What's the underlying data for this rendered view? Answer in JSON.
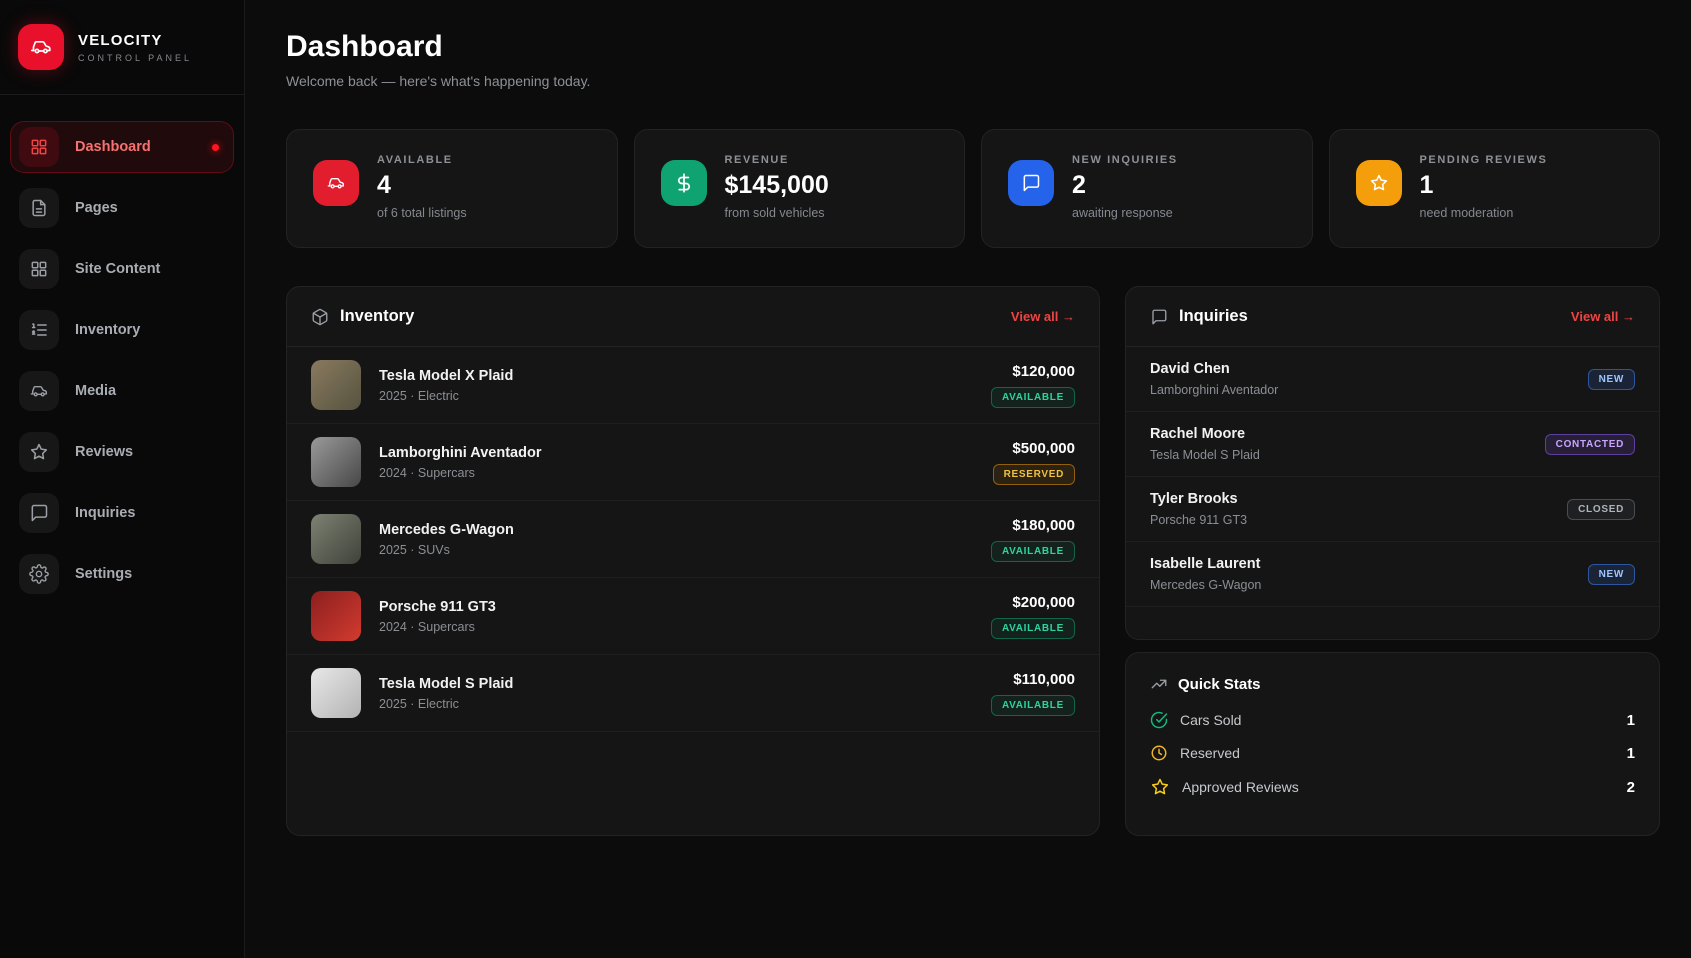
{
  "colors": {
    "accent_red": "#e8102a",
    "link_red": "#ef4444",
    "stat_red": "#e11d2e",
    "stat_green": "#0ea371",
    "stat_blue": "#2563eb",
    "stat_orange": "#f59e0b",
    "badge_available": "#2dd4a0",
    "badge_reserved": "#f0c23e",
    "badge_new": "#9ec5ff",
    "badge_contacted": "#c9a4ff",
    "badge_closed": "#aeb4bc"
  },
  "brand": {
    "name": "VELOCITY",
    "subtitle": "CONTROL PANEL"
  },
  "sidebar": {
    "items": [
      {
        "label": "Dashboard",
        "icon": "grid",
        "active": true
      },
      {
        "label": "Pages",
        "icon": "file",
        "active": false
      },
      {
        "label": "Site Content",
        "icon": "grid",
        "active": false
      },
      {
        "label": "Inventory",
        "icon": "list-ordered",
        "active": false
      },
      {
        "label": "Media",
        "icon": "car",
        "active": false
      },
      {
        "label": "Reviews",
        "icon": "star",
        "active": false
      },
      {
        "label": "Inquiries",
        "icon": "chat",
        "active": false
      },
      {
        "label": "Settings",
        "icon": "gear",
        "active": false
      }
    ]
  },
  "header": {
    "title": "Dashboard",
    "subtitle": "Welcome back — here's what's happening today."
  },
  "stat_cards": [
    {
      "label": "AVAILABLE",
      "value": "4",
      "sub": "of 6 total listings",
      "icon": "car",
      "color": "#e11d2e"
    },
    {
      "label": "REVENUE",
      "value": "$145,000",
      "sub": "from sold vehicles",
      "icon": "dollar",
      "color": "#0ea371"
    },
    {
      "label": "NEW INQUIRIES",
      "value": "2",
      "sub": "awaiting response",
      "icon": "chat",
      "color": "#2563eb"
    },
    {
      "label": "PENDING REVIEWS",
      "value": "1",
      "sub": "need moderation",
      "icon": "star",
      "color": "#f59e0b"
    }
  ],
  "inventory": {
    "title": "Inventory",
    "view_all": "View all →",
    "items": [
      {
        "name": "Tesla Model X Plaid",
        "meta": "2025 · Electric",
        "price": "$120,000",
        "status": "AVAILABLE",
        "thumb": [
          "#8a7a5f",
          "#55533f"
        ]
      },
      {
        "name": "Lamborghini Aventador",
        "meta": "2024 · Supercars",
        "price": "$500,000",
        "status": "RESERVED",
        "thumb": [
          "#9a9a9a",
          "#474747"
        ]
      },
      {
        "name": "Mercedes G-Wagon",
        "meta": "2025 · SUVs",
        "price": "$180,000",
        "status": "AVAILABLE",
        "thumb": [
          "#7d8273",
          "#3f4239"
        ]
      },
      {
        "name": "Porsche 911 GT3",
        "meta": "2024 · Supercars",
        "price": "$200,000",
        "status": "AVAILABLE",
        "thumb": [
          "#8c1f1f",
          "#d23b2f"
        ]
      },
      {
        "name": "Tesla Model S Plaid",
        "meta": "2025 · Electric",
        "price": "$110,000",
        "status": "AVAILABLE",
        "thumb": [
          "#e8e8e8",
          "#b3b3b3"
        ]
      }
    ]
  },
  "inquiries": {
    "title": "Inquiries",
    "view_all": "View all →",
    "items": [
      {
        "name": "David Chen",
        "vehicle": "Lamborghini Aventador",
        "status": "NEW"
      },
      {
        "name": "Rachel Moore",
        "vehicle": "Tesla Model S Plaid",
        "status": "CONTACTED"
      },
      {
        "name": "Tyler Brooks",
        "vehicle": "Porsche 911 GT3",
        "status": "CLOSED"
      },
      {
        "name": "Isabelle Laurent",
        "vehicle": "Mercedes G-Wagon",
        "status": "NEW"
      }
    ]
  },
  "quick_stats": {
    "title": "Quick Stats",
    "items": [
      {
        "label": "Cars Sold",
        "value": "1",
        "icon": "check"
      },
      {
        "label": "Reserved",
        "value": "1",
        "icon": "clock"
      },
      {
        "label": "Approved Reviews",
        "value": "2",
        "icon": "star"
      }
    ]
  }
}
